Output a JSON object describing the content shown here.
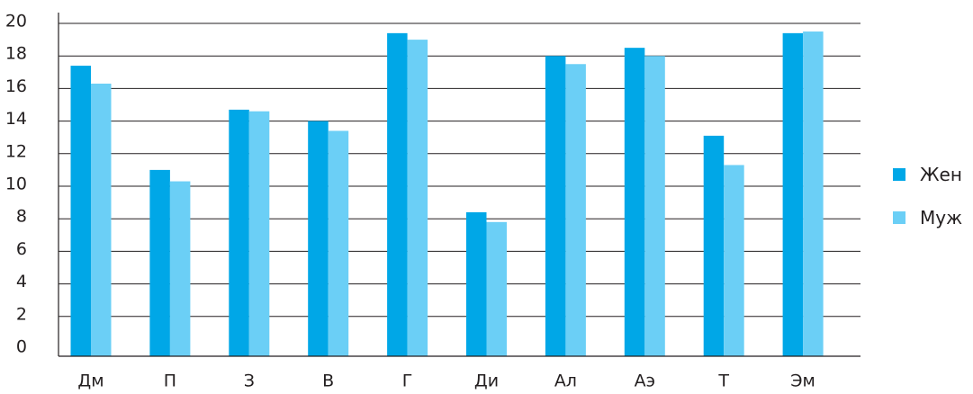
{
  "chart_data": {
    "type": "bar",
    "categories": [
      "Дм",
      "П",
      "З",
      "В",
      "Г",
      "Ди",
      "Ал",
      "Аэ",
      "Т",
      "Эм"
    ],
    "series": [
      {
        "name": "Жен",
        "color": "#00a7e7",
        "values": [
          17.4,
          11.0,
          14.7,
          14.0,
          19.4,
          8.4,
          18.0,
          18.5,
          13.1,
          19.4
        ]
      },
      {
        "name": "Муж",
        "color": "#6bcff6",
        "values": [
          16.3,
          10.3,
          14.6,
          13.4,
          19.0,
          7.8,
          17.5,
          18.0,
          11.3,
          19.5
        ]
      }
    ],
    "ylim": [
      0,
      20
    ],
    "yticks": [
      0,
      2,
      4,
      6,
      8,
      10,
      12,
      14,
      16,
      18,
      20
    ],
    "grid": true,
    "legend_position": "right",
    "title": "",
    "xlabel": "",
    "ylabel": ""
  }
}
